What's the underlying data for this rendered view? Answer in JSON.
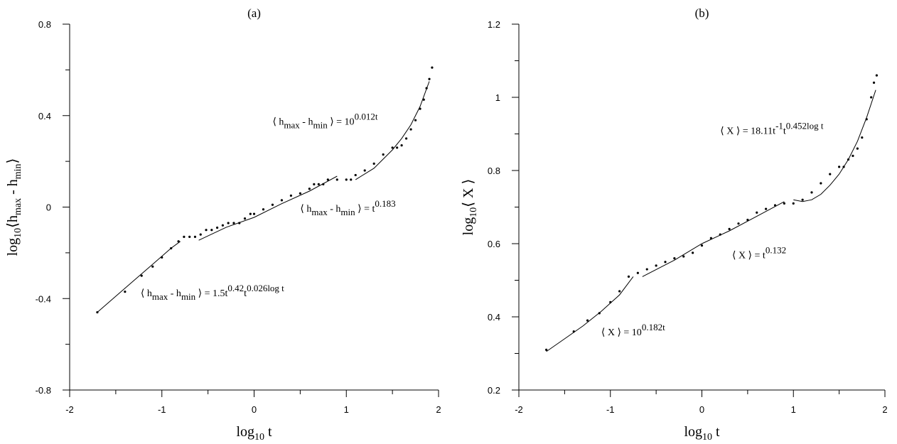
{
  "chart_data": [
    {
      "type": "scatter",
      "title": "(a)",
      "xlabel": {
        "main": "log",
        "sub": "10",
        "tail": " t"
      },
      "ylabel": {
        "main": "log",
        "sub": "10",
        "mid": "⟨h",
        "sub2": "max",
        "mid2": " - h",
        "sub3": "min",
        "tail": "⟩"
      },
      "xlim": [
        -2,
        2
      ],
      "ylim": [
        -0.8,
        0.8
      ],
      "xticks": [
        -2,
        -1,
        0,
        1,
        2
      ],
      "yticks": [
        -0.8,
        -0.4,
        0,
        0.4,
        0.8
      ],
      "xtick_labels": [
        "-2",
        "-1",
        "0",
        "1",
        "2"
      ],
      "ytick_labels": [
        "-0.8",
        "-0.4",
        "0",
        "0.4",
        "0.8"
      ],
      "grid": false,
      "series": [
        {
          "kind": "points",
          "x": [
            -1.7,
            -1.4,
            -1.22,
            -1.1,
            -1.0,
            -0.9,
            -0.82,
            -0.76,
            -0.7,
            -0.64,
            -0.58,
            -0.52,
            -0.46,
            -0.4,
            -0.34,
            -0.28,
            -0.22,
            -0.16,
            -0.1,
            -0.04,
            0.0,
            0.1,
            0.2,
            0.3,
            0.4,
            0.5,
            0.6,
            0.65,
            0.7,
            0.75,
            0.8,
            0.9,
            1.0,
            1.05,
            1.1,
            1.2,
            1.3,
            1.4,
            1.5,
            1.55,
            1.6,
            1.65,
            1.7,
            1.75,
            1.8,
            1.84,
            1.87,
            1.9,
            1.93
          ],
          "y": [
            -0.46,
            -0.37,
            -0.3,
            -0.26,
            -0.22,
            -0.18,
            -0.15,
            -0.13,
            -0.13,
            -0.13,
            -0.12,
            -0.1,
            -0.1,
            -0.09,
            -0.08,
            -0.07,
            -0.07,
            -0.07,
            -0.05,
            -0.03,
            -0.03,
            -0.01,
            0.01,
            0.03,
            0.05,
            0.06,
            0.08,
            0.1,
            0.1,
            0.1,
            0.12,
            0.12,
            0.12,
            0.12,
            0.14,
            0.16,
            0.19,
            0.23,
            0.26,
            0.26,
            0.27,
            0.3,
            0.34,
            0.38,
            0.43,
            0.47,
            0.52,
            0.56,
            0.61
          ]
        },
        {
          "kind": "fit",
          "x": [
            -1.7,
            -1.5,
            -1.3,
            -1.1,
            -0.9,
            -0.8
          ],
          "y": [
            -0.46,
            -0.39,
            -0.32,
            -0.25,
            -0.18,
            -0.15
          ]
        },
        {
          "kind": "fit",
          "x": [
            -0.6,
            -0.3,
            0.0,
            0.3,
            0.6,
            0.9
          ],
          "y": [
            -0.145,
            -0.088,
            -0.045,
            0.015,
            0.07,
            0.135
          ]
        },
        {
          "kind": "fit",
          "x": [
            1.1,
            1.3,
            1.5,
            1.6,
            1.7,
            1.8,
            1.9
          ],
          "y": [
            0.12,
            0.17,
            0.25,
            0.3,
            0.36,
            0.44,
            0.55
          ]
        }
      ],
      "annotations": [
        {
          "text": "⟨ h<sub>max</sub> - h<sub>min</sub> ⟩ = 10<sup>0.012t</sup>",
          "x": 0.2,
          "y": 0.36
        },
        {
          "text": "⟨ h<sub>max</sub> - h<sub>min</sub> ⟩ = t<sup>0.183</sup>",
          "x": 0.5,
          "y": -0.02
        },
        {
          "text": "⟨ h<sub>max</sub> - h<sub>min</sub> ⟩ = 1.5t<sup>0.42</sup>t<sup>0.026log t</sup>",
          "x": -1.23,
          "y": -0.39
        }
      ]
    },
    {
      "type": "scatter",
      "title": "(b)",
      "xlabel": {
        "main": "log",
        "sub": "10",
        "tail": " t"
      },
      "ylabel": {
        "main": "log",
        "sub": "10",
        "tail": "⟨ X ⟩"
      },
      "xlim": [
        -2,
        2
      ],
      "ylim": [
        0.2,
        1.2
      ],
      "xticks": [
        -2,
        -1,
        0,
        1,
        2
      ],
      "yticks": [
        0.2,
        0.4,
        0.6,
        0.8,
        1,
        1.2
      ],
      "xtick_labels": [
        "-2",
        "-1",
        "0",
        "1",
        "2"
      ],
      "ytick_labels": [
        "0.2",
        "0.4",
        "0.6",
        "0.8",
        "1",
        "1.2"
      ],
      "grid": false,
      "series": [
        {
          "kind": "points",
          "x": [
            -1.7,
            -1.4,
            -1.25,
            -1.12,
            -1.0,
            -0.9,
            -0.8,
            -0.7,
            -0.6,
            -0.5,
            -0.4,
            -0.3,
            -0.2,
            -0.1,
            0.0,
            0.1,
            0.2,
            0.3,
            0.4,
            0.5,
            0.6,
            0.7,
            0.8,
            0.9,
            1.0,
            1.1,
            1.2,
            1.3,
            1.4,
            1.5,
            1.55,
            1.6,
            1.65,
            1.7,
            1.75,
            1.8,
            1.85,
            1.88,
            1.91
          ],
          "y": [
            0.31,
            0.36,
            0.39,
            0.41,
            0.44,
            0.47,
            0.51,
            0.52,
            0.53,
            0.54,
            0.55,
            0.56,
            0.565,
            0.575,
            0.595,
            0.615,
            0.625,
            0.64,
            0.655,
            0.665,
            0.685,
            0.695,
            0.705,
            0.71,
            0.71,
            0.72,
            0.74,
            0.765,
            0.79,
            0.81,
            0.81,
            0.83,
            0.84,
            0.86,
            0.89,
            0.94,
            1.0,
            1.04,
            1.06
          ]
        },
        {
          "kind": "fit",
          "x": [
            -1.7,
            -1.5,
            -1.3,
            -1.1,
            -0.9,
            -0.75
          ],
          "y": [
            0.305,
            0.34,
            0.375,
            0.415,
            0.46,
            0.51
          ]
        },
        {
          "kind": "fit",
          "x": [
            -0.65,
            -0.3,
            0.0,
            0.3,
            0.6,
            0.9
          ],
          "y": [
            0.51,
            0.555,
            0.6,
            0.635,
            0.675,
            0.715
          ]
        },
        {
          "kind": "fit",
          "x": [
            1.0,
            1.1,
            1.2,
            1.3,
            1.4,
            1.5,
            1.6,
            1.7,
            1.8,
            1.9
          ],
          "y": [
            0.72,
            0.715,
            0.72,
            0.735,
            0.76,
            0.79,
            0.83,
            0.88,
            0.945,
            1.02
          ]
        }
      ],
      "annotations": [
        {
          "text": "⟨ X ⟩ = 18.11t<sup>-1</sup>t<sup>0.452log t</sup>",
          "x": 0.2,
          "y": 0.9
        },
        {
          "text": "⟨ X ⟩ = t<sup>0.132</sup>",
          "x": 0.33,
          "y": 0.56
        },
        {
          "text": "⟨ X ⟩ = 10<sup>0.182t</sup>",
          "x": -1.1,
          "y": 0.35
        }
      ]
    }
  ]
}
